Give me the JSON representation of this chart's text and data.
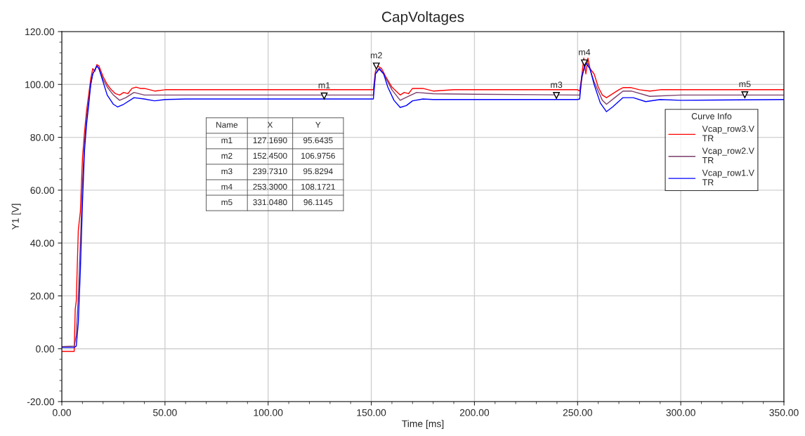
{
  "chart_data": {
    "type": "line",
    "title": "CapVoltages",
    "xlabel": "Time [ms]",
    "ylabel": "Y1 [V]",
    "legend_title": "Curve Info",
    "legend": "right",
    "grid": true,
    "marker": "none",
    "line_style": "solid",
    "xlim": [
      0,
      350
    ],
    "ylim": [
      -20,
      120
    ],
    "xticks": [
      {
        "value": 0,
        "label": "0.00"
      },
      {
        "value": 50,
        "label": "50.00"
      },
      {
        "value": 100,
        "label": "100.00"
      },
      {
        "value": 150,
        "label": "150.00"
      },
      {
        "value": 200,
        "label": "200.00"
      },
      {
        "value": 250,
        "label": "250.00"
      },
      {
        "value": 300,
        "label": "300.00"
      },
      {
        "value": 350,
        "label": "350.00"
      }
    ],
    "yticks": [
      {
        "value": -20,
        "label": "-20.00"
      },
      {
        "value": 0,
        "label": "0.00"
      },
      {
        "value": 20,
        "label": "20.00"
      },
      {
        "value": 40,
        "label": "40.00"
      },
      {
        "value": 60,
        "label": "60.00"
      },
      {
        "value": 80,
        "label": "80.00"
      },
      {
        "value": 100,
        "label": "100.00"
      },
      {
        "value": 120,
        "label": "120.00"
      }
    ],
    "annotations": [
      "Name",
      "X",
      "Y",
      "m1",
      "127.1690",
      "95.6435",
      "m2",
      "152.4500",
      "106.9756",
      "m3",
      "239.7310",
      "95.8294",
      "m4",
      "253.3000",
      "108.1721",
      "m5",
      "331.0480",
      "96.1145",
      {
        "text": "m1",
        "x": 127.169,
        "y": 95.6435
      },
      {
        "text": "m2",
        "x": 152.45,
        "y": 106.9756
      },
      {
        "text": "m3",
        "x": 239.731,
        "y": 95.8294
      },
      {
        "text": "m4",
        "x": 253.3,
        "y": 108.1721
      },
      {
        "text": "m5",
        "x": 331.048,
        "y": 96.1145
      }
    ],
    "series": [
      {
        "name": "Vcap_row3.V\nTR",
        "color": "#ff0000",
        "x": [
          0,
          5.5,
          6,
          6.5,
          7,
          8,
          9,
          10,
          11,
          12,
          13,
          14,
          15,
          16,
          17,
          18,
          19,
          20,
          22,
          24,
          26,
          28,
          30,
          32,
          34,
          36,
          38,
          40,
          45,
          50,
          60,
          80,
          100,
          150,
          151,
          152,
          153,
          155,
          157,
          160,
          162,
          164,
          166,
          168,
          170,
          175,
          180,
          190,
          250,
          251,
          252,
          253,
          254,
          255,
          256,
          258,
          260,
          262,
          264,
          266,
          268,
          270,
          272,
          276,
          280,
          285,
          290,
          300,
          350
        ],
        "values": [
          -1,
          -1,
          -1,
          15,
          18,
          45,
          52,
          72,
          82,
          90,
          96,
          102,
          106,
          105,
          107.5,
          107,
          105,
          103,
          100,
          98,
          96.5,
          96,
          97,
          96.5,
          98.5,
          99,
          98.5,
          98.5,
          97.5,
          98,
          98,
          98,
          98,
          98,
          98,
          105,
          107,
          106,
          103,
          99,
          97.5,
          96,
          97,
          96.5,
          98.5,
          98.5,
          97.5,
          98,
          98,
          97.5,
          103,
          110,
          104,
          110,
          106,
          104,
          99,
          96,
          95,
          96,
          97,
          98,
          98.8,
          98.8,
          98,
          97.5,
          98,
          98,
          98
        ]
      },
      {
        "name": "Vcap_row2.V\nTR",
        "color": "#7b3f6e",
        "x": [
          0,
          6,
          7,
          8,
          9,
          10,
          11,
          12,
          13,
          14,
          15,
          17,
          18,
          20,
          22,
          25,
          28,
          31,
          35,
          40,
          50,
          150,
          151,
          152,
          153.5,
          156,
          160,
          164,
          168,
          172,
          180,
          200,
          250,
          251,
          252,
          253.5,
          255,
          258,
          262,
          264,
          268,
          272,
          276,
          285,
          300,
          350
        ],
        "values": [
          0.8,
          1,
          5,
          20,
          40,
          62,
          78,
          88,
          94,
          100,
          104,
          107,
          106,
          102,
          99,
          96,
          94,
          95,
          97,
          96,
          96,
          96,
          96,
          104,
          106,
          104,
          98,
          94,
          95.5,
          97,
          96.5,
          96.3,
          96,
          96,
          102,
          108,
          108,
          101,
          94,
          92.5,
          95,
          97.5,
          97.5,
          95.5,
          96,
          96
        ]
      },
      {
        "name": "Vcap_row1.V\nTR",
        "color": "#0000ff",
        "x": [
          0,
          6,
          7,
          8,
          9,
          10,
          11,
          12,
          13,
          14,
          15,
          17,
          18,
          20,
          22,
          25,
          27,
          30,
          35,
          40,
          45,
          50,
          60,
          150,
          151,
          152,
          154,
          156,
          158,
          161,
          164,
          167,
          170,
          175,
          180,
          190,
          250,
          251,
          252,
          254,
          256,
          258,
          261,
          264,
          267,
          272,
          277,
          283,
          290,
          300,
          350
        ],
        "values": [
          0.5,
          0.5,
          1,
          10,
          30,
          55,
          75,
          85,
          92,
          100,
          104,
          107,
          106,
          101,
          96,
          92.5,
          91.5,
          92.5,
          95,
          94.5,
          93.8,
          94.3,
          94.5,
          94.5,
          94.5,
          104,
          106,
          104,
          99,
          94,
          91.3,
          92,
          93.8,
          94.5,
          94.3,
          94.3,
          94.3,
          94.5,
          103,
          108,
          106,
          100,
          93,
          89.7,
          91.5,
          95,
          95,
          93.5,
          94.3,
          94,
          94.3
        ]
      }
    ]
  }
}
